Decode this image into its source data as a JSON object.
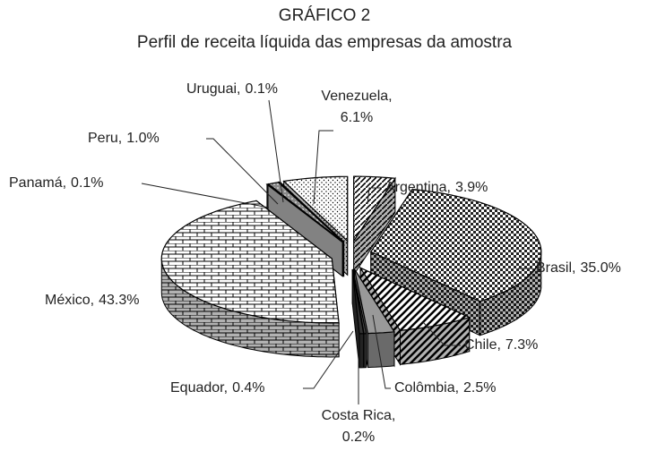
{
  "chart_data": {
    "type": "pie",
    "title": "GRÁFICO 2",
    "subtitle": "Perfil de receita líquida das empresas da amostra",
    "categories": [
      "Argentina,",
      "Brasil,",
      "Chile,",
      "Colômbia,",
      "Costa Rica,",
      "Equador,",
      "México,",
      "Panamá,",
      "Peru,",
      "Uruguai,",
      "Venezuela,"
    ],
    "values": [
      3.9,
      35.0,
      7.3,
      2.5,
      0.2,
      0.4,
      43.3,
      0.1,
      1.0,
      0.1,
      6.1
    ],
    "value_labels": [
      "3.9%",
      "35.0%",
      "7.3%",
      "2.5%",
      "0.2%",
      "0.4%",
      "43.3%",
      "0.1%",
      "1.0%",
      "0.1%",
      "6.1%"
    ]
  }
}
